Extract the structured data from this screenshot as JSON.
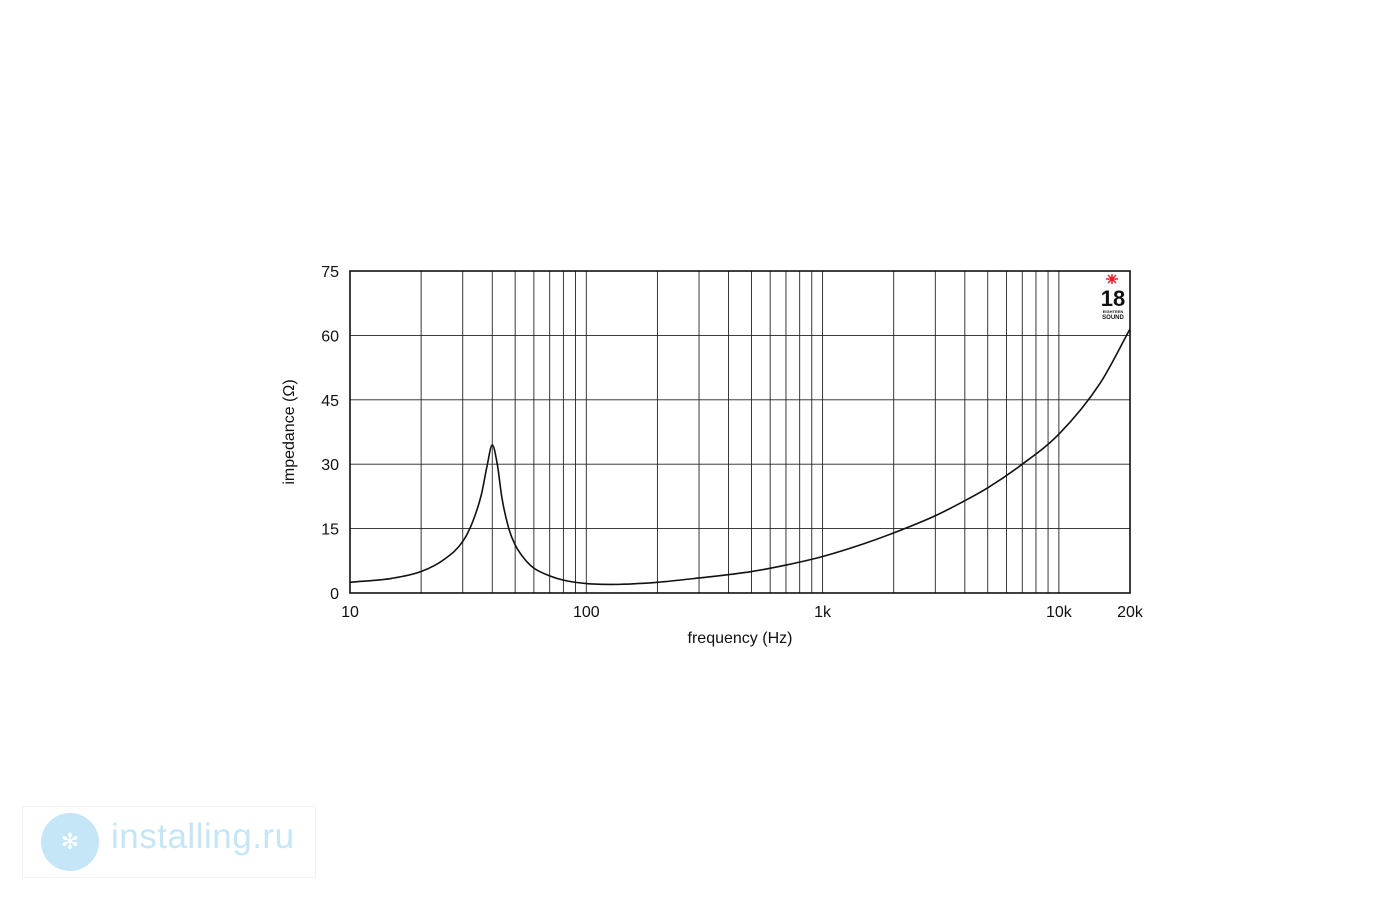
{
  "chart_data": {
    "type": "line",
    "title": "",
    "xlabel": "frequency (Hz)",
    "ylabel": "impedance (Ω)",
    "xscale": "log",
    "xlim": [
      10,
      20000
    ],
    "ylim": [
      0,
      75
    ],
    "grid": true,
    "x_tick_labels": [
      {
        "value": 10,
        "label": "10"
      },
      {
        "value": 100,
        "label": "100"
      },
      {
        "value": 1000,
        "label": "1k"
      },
      {
        "value": 10000,
        "label": "10k"
      },
      {
        "value": 20000,
        "label": "20k"
      }
    ],
    "y_ticks": [
      0,
      15,
      30,
      45,
      60,
      75
    ],
    "line_color": "#111111",
    "series": [
      {
        "x": [
          10,
          15,
          20,
          25,
          30,
          33,
          36,
          38,
          40,
          42,
          44,
          47,
          50,
          55,
          60,
          70,
          80,
          100,
          130,
          200,
          300,
          500,
          700,
          1000,
          1500,
          2000,
          3000,
          4000,
          5000,
          7000,
          10000,
          15000,
          20000
        ],
        "values": [
          2.5,
          3.4,
          5.0,
          7.8,
          12.0,
          16.5,
          23.0,
          29.5,
          34.5,
          30.0,
          22.0,
          15.0,
          11.2,
          7.8,
          5.8,
          4.0,
          3.0,
          2.2,
          2.0,
          2.5,
          3.5,
          5.0,
          6.5,
          8.5,
          11.5,
          14.0,
          18.0,
          21.5,
          24.5,
          30.0,
          37.0,
          49.0,
          61.5
        ]
      }
    ]
  },
  "logo": {
    "number": "18",
    "brand_line1": "EIGHTEEN",
    "brand_line2": "SOUND",
    "accent_color": "#e5202a",
    "icon": "star-burst-icon"
  },
  "watermark": {
    "text": "installing.ru",
    "color": "#c4e6f6",
    "icon": "snowflake-icon"
  }
}
